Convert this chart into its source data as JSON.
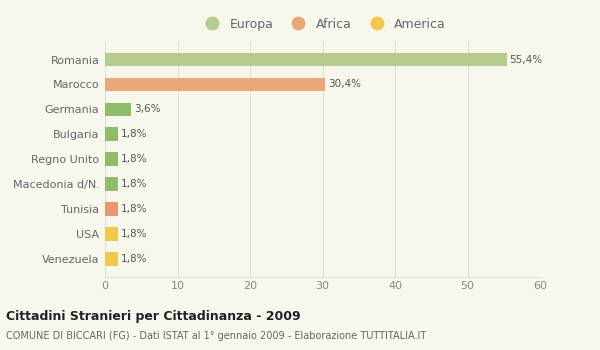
{
  "categories": [
    "Venezuela",
    "USA",
    "Tunisia",
    "Macedonia d/N.",
    "Regno Unito",
    "Bulgaria",
    "Germania",
    "Marocco",
    "Romania"
  ],
  "values": [
    1.8,
    1.8,
    1.8,
    1.8,
    1.8,
    1.8,
    3.6,
    30.4,
    55.4
  ],
  "labels": [
    "1,8%",
    "1,8%",
    "1,8%",
    "1,8%",
    "1,8%",
    "1,8%",
    "3,6%",
    "30,4%",
    "55,4%"
  ],
  "colors": [
    "#f2c84b",
    "#f2c84b",
    "#e89870",
    "#8fbc6a",
    "#8fbc6a",
    "#8fbc6a",
    "#8fbc6a",
    "#e8a87a",
    "#b5cc8e"
  ],
  "legend": [
    {
      "label": "Europa",
      "color": "#b5cc8e"
    },
    {
      "label": "Africa",
      "color": "#e8a87a"
    },
    {
      "label": "America",
      "color": "#f2c84b"
    }
  ],
  "xlim": [
    0,
    60
  ],
  "xticks": [
    0,
    10,
    20,
    30,
    40,
    50,
    60
  ],
  "title": "Cittadini Stranieri per Cittadinanza - 2009",
  "subtitle": "COMUNE DI BICCARI (FG) - Dati ISTAT al 1° gennaio 2009 - Elaborazione TUTTITALIA.IT",
  "bg_color": "#f7f7ee",
  "grid_color": "#e0e0d0",
  "bar_height": 0.55
}
